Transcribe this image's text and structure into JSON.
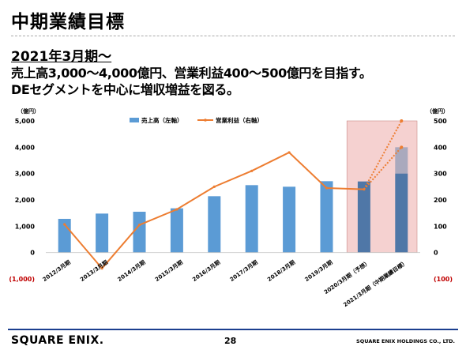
{
  "slide": {
    "title": "中期業績目標",
    "heading": "2021年3月期～",
    "line2": "売上高3,000～4,000億円、営業利益400～500億円を目指す。",
    "line3": "DEセグメントを中心に増収増益を図る。"
  },
  "footer": {
    "logo": "SQUARE ENIX.",
    "page_number": "28",
    "copyright": "SQUARE ENIX HOLDINGS CO., LTD."
  },
  "colors": {
    "bar": "#5b9bd5",
    "bar_dark": "#4f77a7",
    "line": "#ed7d31",
    "highlight": "#f2c2c0",
    "negative_label": "#c00000"
  },
  "chart_data": {
    "type": "bar",
    "categories": [
      "2012/3月期",
      "2013/3月期",
      "2014/3月期",
      "2015/3月期",
      "2016/3月期",
      "2017/3月期",
      "2018/3月期",
      "2019/3月期",
      "2020/3月期（予想）",
      "2021/3月期（中期業績目標）"
    ],
    "series": [
      {
        "name": "売上高（左軸）",
        "axis": "left",
        "chart": "bar",
        "values": [
          1280,
          1480,
          1550,
          1680,
          2140,
          2560,
          2500,
          2710,
          2700,
          3000
        ],
        "target_upper": 4000
      },
      {
        "name": "営業利益（右軸）",
        "axis": "right",
        "chart": "line",
        "values": [
          107,
          -60,
          105,
          164,
          250,
          310,
          380,
          245,
          240,
          null
        ],
        "target": [
          400,
          500
        ]
      }
    ],
    "left_axis": {
      "unit": "（億円）",
      "ylim": [
        -1000,
        5000
      ],
      "ticks": [
        5000,
        4000,
        3000,
        2000,
        1000,
        0,
        -1000
      ],
      "tick_labels": [
        "5,000",
        "4,000",
        "3,000",
        "2,000",
        "1,000",
        "0",
        "(1,000)"
      ]
    },
    "right_axis": {
      "unit": "（億円）",
      "ylim": [
        -100,
        500
      ],
      "ticks": [
        500,
        400,
        300,
        200,
        100,
        0,
        -100
      ],
      "tick_labels": [
        "500",
        "400",
        "300",
        "200",
        "100",
        "0",
        "(100)"
      ]
    },
    "highlighted_categories": [
      "2020/3月期（予想）",
      "2021/3月期（中期業績目標）"
    ],
    "legend_position": "top-center",
    "grid": false
  }
}
